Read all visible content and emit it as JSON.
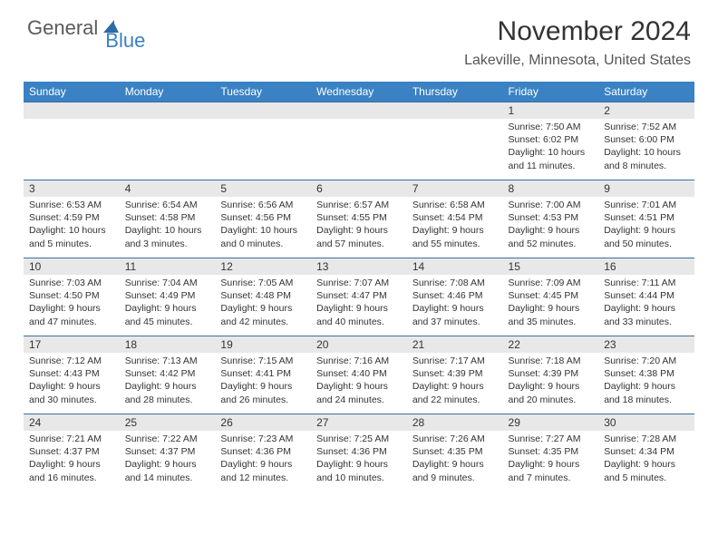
{
  "logo": {
    "part1": "General",
    "part2": "Blue"
  },
  "title": "November 2024",
  "location": "Lakeville, Minnesota, United States",
  "colors": {
    "header_bg": "#3b82c4",
    "row_border": "#3b6fa0",
    "daynum_bg": "#e8e8e8",
    "logo_gray": "#5a5a5a",
    "logo_blue": "#3b7fc4",
    "text": "#333333",
    "background": "#ffffff"
  },
  "typography": {
    "title_fontsize": 30,
    "location_fontsize": 16,
    "weekday_fontsize": 12,
    "daynum_fontsize": 12,
    "info_fontsize": 10.5
  },
  "weekdays": [
    "Sunday",
    "Monday",
    "Tuesday",
    "Wednesday",
    "Thursday",
    "Friday",
    "Saturday"
  ],
  "weeks": [
    [
      null,
      null,
      null,
      null,
      null,
      {
        "n": "1",
        "sunrise": "7:50 AM",
        "sunset": "6:02 PM",
        "daylight": "10 hours and 11 minutes."
      },
      {
        "n": "2",
        "sunrise": "7:52 AM",
        "sunset": "6:00 PM",
        "daylight": "10 hours and 8 minutes."
      }
    ],
    [
      {
        "n": "3",
        "sunrise": "6:53 AM",
        "sunset": "4:59 PM",
        "daylight": "10 hours and 5 minutes."
      },
      {
        "n": "4",
        "sunrise": "6:54 AM",
        "sunset": "4:58 PM",
        "daylight": "10 hours and 3 minutes."
      },
      {
        "n": "5",
        "sunrise": "6:56 AM",
        "sunset": "4:56 PM",
        "daylight": "10 hours and 0 minutes."
      },
      {
        "n": "6",
        "sunrise": "6:57 AM",
        "sunset": "4:55 PM",
        "daylight": "9 hours and 57 minutes."
      },
      {
        "n": "7",
        "sunrise": "6:58 AM",
        "sunset": "4:54 PM",
        "daylight": "9 hours and 55 minutes."
      },
      {
        "n": "8",
        "sunrise": "7:00 AM",
        "sunset": "4:53 PM",
        "daylight": "9 hours and 52 minutes."
      },
      {
        "n": "9",
        "sunrise": "7:01 AM",
        "sunset": "4:51 PM",
        "daylight": "9 hours and 50 minutes."
      }
    ],
    [
      {
        "n": "10",
        "sunrise": "7:03 AM",
        "sunset": "4:50 PM",
        "daylight": "9 hours and 47 minutes."
      },
      {
        "n": "11",
        "sunrise": "7:04 AM",
        "sunset": "4:49 PM",
        "daylight": "9 hours and 45 minutes."
      },
      {
        "n": "12",
        "sunrise": "7:05 AM",
        "sunset": "4:48 PM",
        "daylight": "9 hours and 42 minutes."
      },
      {
        "n": "13",
        "sunrise": "7:07 AM",
        "sunset": "4:47 PM",
        "daylight": "9 hours and 40 minutes."
      },
      {
        "n": "14",
        "sunrise": "7:08 AM",
        "sunset": "4:46 PM",
        "daylight": "9 hours and 37 minutes."
      },
      {
        "n": "15",
        "sunrise": "7:09 AM",
        "sunset": "4:45 PM",
        "daylight": "9 hours and 35 minutes."
      },
      {
        "n": "16",
        "sunrise": "7:11 AM",
        "sunset": "4:44 PM",
        "daylight": "9 hours and 33 minutes."
      }
    ],
    [
      {
        "n": "17",
        "sunrise": "7:12 AM",
        "sunset": "4:43 PM",
        "daylight": "9 hours and 30 minutes."
      },
      {
        "n": "18",
        "sunrise": "7:13 AM",
        "sunset": "4:42 PM",
        "daylight": "9 hours and 28 minutes."
      },
      {
        "n": "19",
        "sunrise": "7:15 AM",
        "sunset": "4:41 PM",
        "daylight": "9 hours and 26 minutes."
      },
      {
        "n": "20",
        "sunrise": "7:16 AM",
        "sunset": "4:40 PM",
        "daylight": "9 hours and 24 minutes."
      },
      {
        "n": "21",
        "sunrise": "7:17 AM",
        "sunset": "4:39 PM",
        "daylight": "9 hours and 22 minutes."
      },
      {
        "n": "22",
        "sunrise": "7:18 AM",
        "sunset": "4:39 PM",
        "daylight": "9 hours and 20 minutes."
      },
      {
        "n": "23",
        "sunrise": "7:20 AM",
        "sunset": "4:38 PM",
        "daylight": "9 hours and 18 minutes."
      }
    ],
    [
      {
        "n": "24",
        "sunrise": "7:21 AM",
        "sunset": "4:37 PM",
        "daylight": "9 hours and 16 minutes."
      },
      {
        "n": "25",
        "sunrise": "7:22 AM",
        "sunset": "4:37 PM",
        "daylight": "9 hours and 14 minutes."
      },
      {
        "n": "26",
        "sunrise": "7:23 AM",
        "sunset": "4:36 PM",
        "daylight": "9 hours and 12 minutes."
      },
      {
        "n": "27",
        "sunrise": "7:25 AM",
        "sunset": "4:36 PM",
        "daylight": "9 hours and 10 minutes."
      },
      {
        "n": "28",
        "sunrise": "7:26 AM",
        "sunset": "4:35 PM",
        "daylight": "9 hours and 9 minutes."
      },
      {
        "n": "29",
        "sunrise": "7:27 AM",
        "sunset": "4:35 PM",
        "daylight": "9 hours and 7 minutes."
      },
      {
        "n": "30",
        "sunrise": "7:28 AM",
        "sunset": "4:34 PM",
        "daylight": "9 hours and 5 minutes."
      }
    ]
  ],
  "labels": {
    "sunrise": "Sunrise:",
    "sunset": "Sunset:",
    "daylight": "Daylight:"
  }
}
